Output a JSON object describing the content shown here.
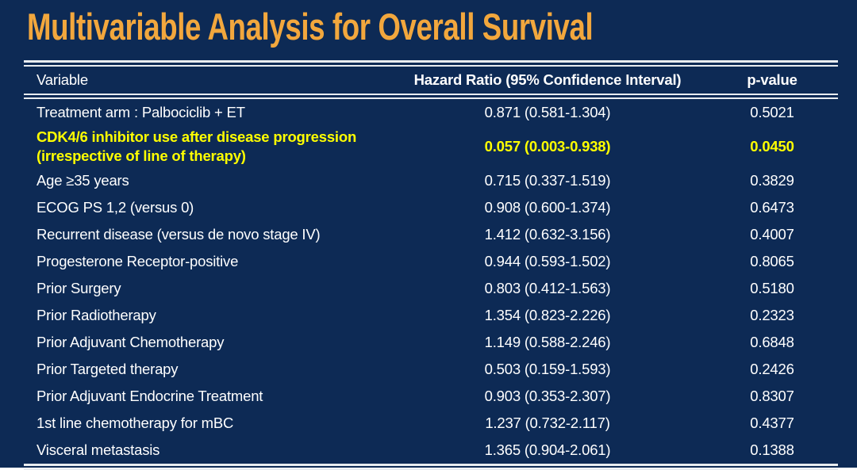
{
  "title": "Multivariable Analysis for Overall Survival",
  "colors": {
    "background": "#0d2a55",
    "title": "#f2a73d",
    "highlight": "#ffff00",
    "body_text": "#ffffff",
    "rule": "#e8ecf0"
  },
  "table": {
    "headers": [
      {
        "label": "Variable"
      },
      {
        "label": "Hazard Ratio (95% Confidence Interval)"
      },
      {
        "label": "p-value"
      }
    ],
    "rows": [
      {
        "variable": "Treatment arm : Palbociclib + ET",
        "hr": "0.871 (0.581-1.304)",
        "p": "0.5021",
        "highlight": false
      },
      {
        "variable": "CDK4/6 inhibitor use after disease progression\n(irrespective of line of therapy)",
        "hr": "0.057 (0.003-0.938)",
        "p": "0.0450",
        "highlight": true
      },
      {
        "variable": "Age ≥35 years",
        "hr": "0.715 (0.337-1.519)",
        "p": "0.3829",
        "highlight": false
      },
      {
        "variable": "ECOG PS 1,2 (versus 0)",
        "hr": "0.908 (0.600-1.374)",
        "p": "0.6473",
        "highlight": false
      },
      {
        "variable": "Recurrent disease (versus de novo stage IV)",
        "hr": "1.412 (0.632-3.156)",
        "p": "0.4007",
        "highlight": false
      },
      {
        "variable": "Progesterone Receptor-positive",
        "hr": "0.944 (0.593-1.502)",
        "p": "0.8065",
        "highlight": false
      },
      {
        "variable": "Prior Surgery",
        "hr": "0.803 (0.412-1.563)",
        "p": "0.5180",
        "highlight": false
      },
      {
        "variable": "Prior Radiotherapy",
        "hr": "1.354 (0.823-2.226)",
        "p": "0.2323",
        "highlight": false
      },
      {
        "variable": "Prior Adjuvant Chemotherapy",
        "hr": "1.149 (0.588-2.246)",
        "p": "0.6848",
        "highlight": false
      },
      {
        "variable": "Prior Targeted therapy",
        "hr": "0.503 (0.159-1.593)",
        "p": "0.2426",
        "highlight": false
      },
      {
        "variable": "Prior Adjuvant Endocrine Treatment",
        "hr": "0.903 (0.353-2.307)",
        "p": "0.8307",
        "highlight": false
      },
      {
        "variable": "1st line chemotherapy for mBC",
        "hr": "1.237 (0.732-2.117)",
        "p": "0.4377",
        "highlight": false
      },
      {
        "variable": "Visceral metastasis",
        "hr": "1.365 (0.904-2.061)",
        "p": "0.1388",
        "highlight": false
      }
    ]
  }
}
